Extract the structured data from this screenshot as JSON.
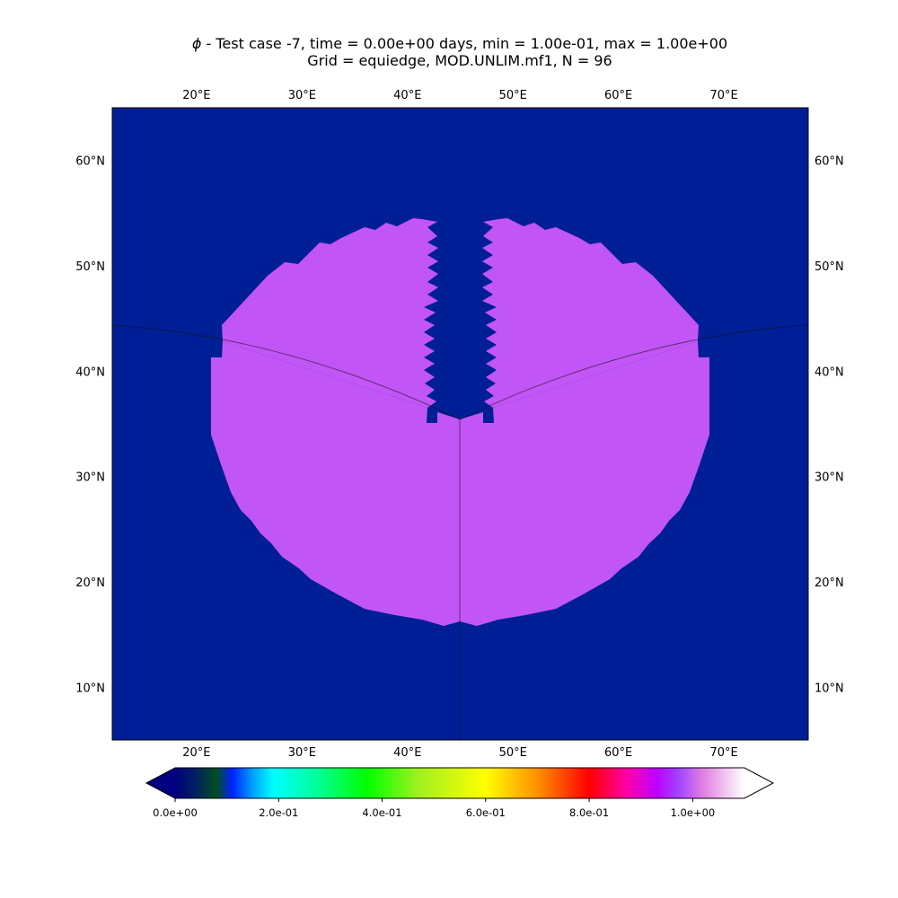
{
  "chart_data": {
    "type": "heatmap",
    "title_line1_symbol": "ϕ",
    "title_line1_rest": " - Test case -7, time = 0.00e+00 days, min = 1.00e-01, max = 1.00e+00",
    "title_line2": "Grid = equiedge, MOD.UNLIM.mf1, N = 96",
    "xlim": [
      12,
      78
    ],
    "ylim": [
      5,
      65
    ],
    "x_ticks": [
      {
        "value": 20,
        "label": "20°E"
      },
      {
        "value": 30,
        "label": "30°E"
      },
      {
        "value": 40,
        "label": "40°E"
      },
      {
        "value": 50,
        "label": "50°E"
      },
      {
        "value": 60,
        "label": "60°E"
      },
      {
        "value": 70,
        "label": "70°E"
      }
    ],
    "y_ticks": [
      {
        "value": 10,
        "label": "10°N"
      },
      {
        "value": 20,
        "label": "20°N"
      },
      {
        "value": 30,
        "label": "30°N"
      },
      {
        "value": 40,
        "label": "40°N"
      },
      {
        "value": 50,
        "label": "50°N"
      },
      {
        "value": 60,
        "label": "60°N"
      }
    ],
    "background_value": 0.1,
    "field_value": 1.0,
    "background_color": "#001f96",
    "field_color": "#c255f5",
    "grid": false,
    "panel_boundaries": true,
    "colorbar": {
      "orientation": "horizontal",
      "range": [
        0,
        1.1
      ],
      "extend": "both",
      "ticks": [
        {
          "value": 0.0,
          "label": "0.0e+00"
        },
        {
          "value": 0.2,
          "label": "2.0e-01"
        },
        {
          "value": 0.4,
          "label": "4.0e-01"
        },
        {
          "value": 0.6,
          "label": "6.0e-01"
        },
        {
          "value": 0.8,
          "label": "8.0e-01"
        },
        {
          "value": 1.0,
          "label": "1.0e+00"
        }
      ],
      "low_color": "#000080",
      "high_color": "#ffffff",
      "stops": [
        {
          "v": 0.0,
          "c": "#000080"
        },
        {
          "v": 0.04,
          "c": "#002060"
        },
        {
          "v": 0.08,
          "c": "#005020"
        },
        {
          "v": 0.11,
          "c": "#0020ff"
        },
        {
          "v": 0.15,
          "c": "#00a0ff"
        },
        {
          "v": 0.19,
          "c": "#00ffff"
        },
        {
          "v": 0.28,
          "c": "#00ff90"
        },
        {
          "v": 0.37,
          "c": "#00ff00"
        },
        {
          "v": 0.47,
          "c": "#a0f020"
        },
        {
          "v": 0.6,
          "c": "#ffff00"
        },
        {
          "v": 0.7,
          "c": "#ff9000"
        },
        {
          "v": 0.8,
          "c": "#ff0000"
        },
        {
          "v": 0.87,
          "c": "#ff00a0"
        },
        {
          "v": 0.93,
          "c": "#c000ff"
        },
        {
          "v": 0.97,
          "c": "#a040ff"
        },
        {
          "v": 1.02,
          "c": "#e080e0"
        },
        {
          "v": 1.1,
          "c": "#ffffff"
        }
      ]
    }
  }
}
